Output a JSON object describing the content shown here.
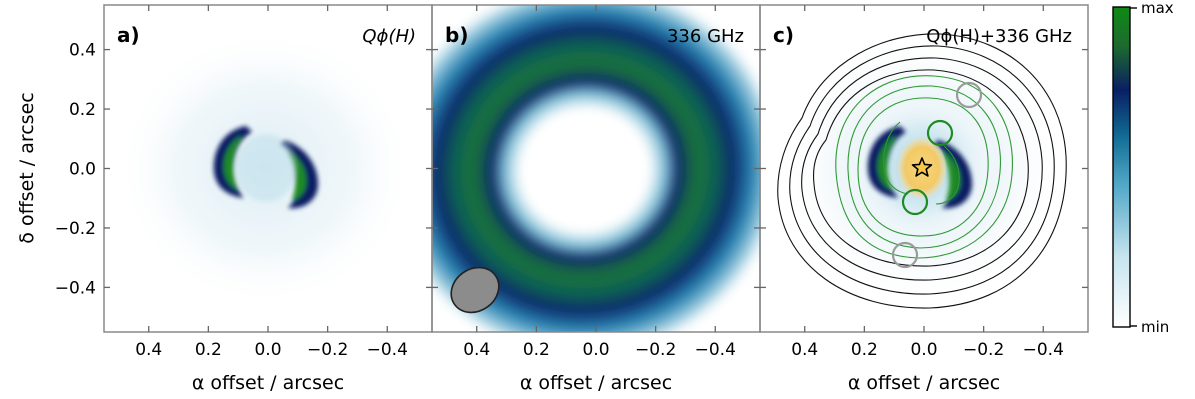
{
  "figure": {
    "panels": [
      {
        "letter": "a)",
        "title": "Qϕ(H)"
      },
      {
        "letter": "b)",
        "title": "336 GHz"
      },
      {
        "letter": "c)",
        "title": "Qϕ(H)+336 GHz"
      }
    ],
    "y_axis_label": "δ offset / arcsec",
    "x_axis_labels": [
      "α offset / arcsec",
      "α offset / arcsec",
      "α offset / arcsec"
    ],
    "x_tick_labels": [
      "0.4",
      "0.2",
      "0.0",
      "−0.2",
      "−0.4"
    ],
    "y_tick_labels": [
      "0.4",
      "0.2",
      "0.0",
      "−0.2",
      "−0.4"
    ],
    "colorbar": {
      "max_label": "max",
      "min_label": "min",
      "colors": [
        "#ffffff",
        "#c6e4ef",
        "#4fa6c6",
        "#106a93",
        "#0a1f63",
        "#1d6b2e",
        "#0f8a14"
      ]
    }
  },
  "chart_data": {
    "type": "image",
    "x_ticks": [
      0.4,
      0.2,
      0.0,
      -0.2,
      -0.4
    ],
    "y_ticks": [
      0.4,
      0.2,
      0.0,
      -0.2,
      -0.4
    ],
    "xlim": [
      0.55,
      -0.55
    ],
    "ylim": [
      -0.55,
      0.55
    ]
  }
}
